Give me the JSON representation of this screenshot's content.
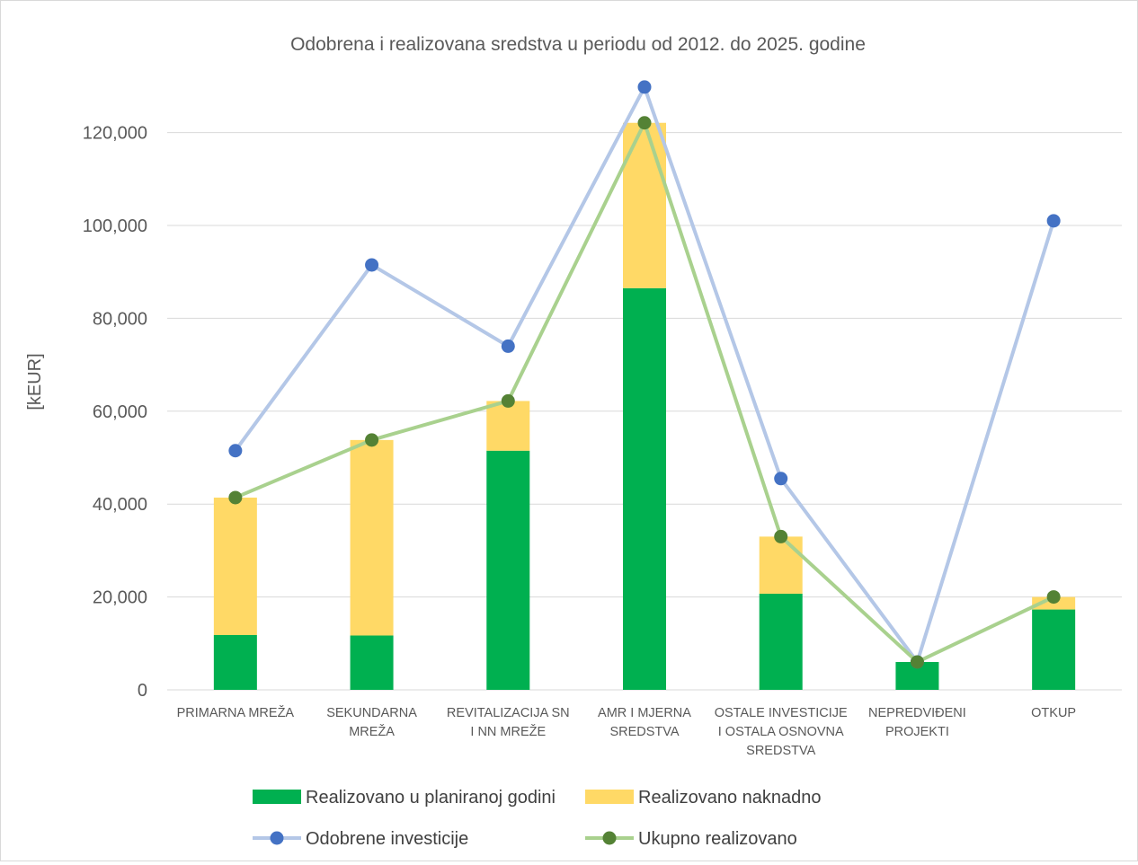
{
  "chart_data": {
    "type": "bar",
    "title": "Odobrena i realizovana sredstva u periodu od 2012. do 2025. godine",
    "ylabel": "[kEUR]",
    "xlabel": "",
    "ylim": [
      0,
      130000
    ],
    "yticks": [
      0,
      20000,
      40000,
      60000,
      80000,
      100000,
      120000
    ],
    "ytick_labels": [
      "0",
      "20,000",
      "40,000",
      "60,000",
      "80,000",
      "100,000",
      "120,000"
    ],
    "grid": true,
    "legend_position": "bottom",
    "categories": [
      [
        "PRIMARNA MREŽA"
      ],
      [
        "SEKUNDARNA",
        "MREŽA"
      ],
      [
        "REVITALIZACIJA SN",
        "I NN MREŽE"
      ],
      [
        "AMR I MJERNA",
        "SREDSTVA"
      ],
      [
        "OSTALE INVESTICIJE",
        "I OSTALA OSNOVNA",
        "SREDSTVA"
      ],
      [
        "NEPREDVIĐENI",
        "PROJEKTI"
      ],
      [
        "OTKUP"
      ]
    ],
    "series": [
      {
        "name": "Realizovano u planiranoj godini",
        "kind": "stacked-bar",
        "color": "#00b050",
        "values": [
          11800,
          11700,
          51500,
          86500,
          20700,
          6000,
          17300
        ]
      },
      {
        "name": "Realizovano naknadno",
        "kind": "stacked-bar",
        "color": "#ffd966",
        "values": [
          29600,
          42100,
          10700,
          35600,
          12300,
          0,
          2700
        ]
      },
      {
        "name": "Odobrene investicije",
        "kind": "line",
        "color": "#4472c4",
        "line_color": "#b4c7e7",
        "values": [
          51500,
          91500,
          74000,
          129800,
          45500,
          6000,
          101000
        ]
      },
      {
        "name": "Ukupno realizovano",
        "kind": "line",
        "color": "#548235",
        "line_color": "#a9d18e",
        "values": [
          41400,
          53800,
          62200,
          122100,
          33000,
          6000,
          20000
        ]
      }
    ]
  }
}
